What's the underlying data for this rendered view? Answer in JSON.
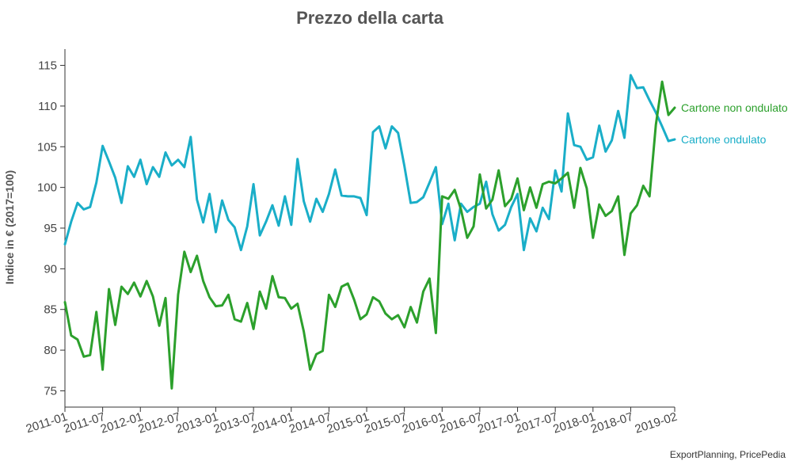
{
  "chart_data": {
    "type": "line",
    "title": "Prezzo della carta",
    "ylabel": "Indice in € (2017=100)",
    "xlabel": "",
    "source": "ExportPlanning, PricePedia",
    "ylim": [
      73,
      117
    ],
    "y_ticks": [
      75,
      80,
      85,
      90,
      95,
      100,
      105,
      110,
      115
    ],
    "x_start": "2011-01",
    "x_end": "2019-02",
    "x_ticks": [
      "2011-01",
      "2011-07",
      "2012-01",
      "2012-07",
      "2013-01",
      "2013-07",
      "2014-01",
      "2014-07",
      "2015-01",
      "2015-07",
      "2016-01",
      "2016-07",
      "2017-01",
      "2017-07",
      "2018-01",
      "2018-07",
      "2019-02"
    ],
    "series": [
      {
        "name": "Cartone ondulato",
        "color": "#1aaec8",
        "x": [
          "2011-01",
          "2011-02",
          "2011-03",
          "2011-04",
          "2011-05",
          "2011-06",
          "2011-07",
          "2011-08",
          "2011-09",
          "2011-10",
          "2011-11",
          "2011-12",
          "2012-01",
          "2012-02",
          "2012-03",
          "2012-04",
          "2012-05",
          "2012-06",
          "2012-07",
          "2012-08",
          "2012-09",
          "2012-10",
          "2012-11",
          "2012-12",
          "2013-01",
          "2013-02",
          "2013-03",
          "2013-04",
          "2013-05",
          "2013-06",
          "2013-07",
          "2013-08",
          "2013-09",
          "2013-10",
          "2013-11",
          "2013-12",
          "2014-01",
          "2014-02",
          "2014-03",
          "2014-04",
          "2014-05",
          "2014-06",
          "2014-07",
          "2014-08",
          "2014-09",
          "2014-10",
          "2014-11",
          "2014-12",
          "2015-01",
          "2015-02",
          "2015-03",
          "2015-04",
          "2015-05",
          "2015-06",
          "2015-07",
          "2015-08",
          "2015-09",
          "2015-10",
          "2015-11",
          "2015-12",
          "2016-01",
          "2016-02",
          "2016-03",
          "2016-04",
          "2016-05",
          "2016-06",
          "2016-07",
          "2016-08",
          "2016-09",
          "2016-10",
          "2016-11",
          "2016-12",
          "2017-01",
          "2017-02",
          "2017-03",
          "2017-04",
          "2017-05",
          "2017-06",
          "2017-07",
          "2017-08",
          "2017-09",
          "2017-10",
          "2017-11",
          "2017-12",
          "2018-01",
          "2018-02",
          "2018-03",
          "2018-04",
          "2018-05",
          "2018-06",
          "2018-07",
          "2018-08",
          "2018-09",
          "2018-10",
          "2018-11",
          "2018-12",
          "2019-01",
          "2019-02"
        ],
        "values": [
          93.0,
          95.8,
          98.1,
          97.3,
          97.6,
          100.6,
          105.1,
          103.2,
          101.2,
          98.1,
          102.6,
          101.3,
          103.4,
          100.4,
          102.5,
          101.3,
          104.3,
          102.7,
          103.4,
          102.5,
          106.2,
          98.5,
          95.7,
          99.2,
          94.5,
          98.4,
          96.0,
          95.1,
          92.3,
          95.2,
          100.4,
          94.1,
          95.8,
          97.8,
          95.3,
          98.9,
          95.4,
          103.5,
          98.3,
          95.8,
          98.6,
          97.0,
          99.2,
          102.2,
          99.0,
          98.9,
          98.9,
          98.7,
          96.6,
          106.8,
          107.5,
          104.8,
          107.5,
          106.7,
          102.6,
          98.1,
          98.2,
          98.8,
          100.6,
          102.5,
          95.5,
          98.0,
          93.5,
          98.0,
          97.0,
          97.6,
          98.0,
          100.7,
          96.7,
          94.7,
          95.4,
          97.6,
          99.2,
          92.3,
          96.2,
          94.6,
          97.5,
          96.1,
          102.1,
          99.5,
          109.1,
          105.2,
          105.0,
          103.4,
          103.7,
          107.6,
          104.4,
          105.8,
          109.4,
          106.1,
          113.8,
          112.2,
          112.3,
          110.7,
          109.2,
          107.5,
          105.7,
          105.9
        ]
      },
      {
        "name": "Cartone non ondulato",
        "color": "#2ca02c",
        "x": [
          "2011-01",
          "2011-02",
          "2011-03",
          "2011-04",
          "2011-05",
          "2011-06",
          "2011-07",
          "2011-08",
          "2011-09",
          "2011-10",
          "2011-11",
          "2011-12",
          "2012-01",
          "2012-02",
          "2012-03",
          "2012-04",
          "2012-05",
          "2012-06",
          "2012-07",
          "2012-08",
          "2012-09",
          "2012-10",
          "2012-11",
          "2012-12",
          "2013-01",
          "2013-02",
          "2013-03",
          "2013-04",
          "2013-05",
          "2013-06",
          "2013-07",
          "2013-08",
          "2013-09",
          "2013-10",
          "2013-11",
          "2013-12",
          "2014-01",
          "2014-02",
          "2014-03",
          "2014-04",
          "2014-05",
          "2014-06",
          "2014-07",
          "2014-08",
          "2014-09",
          "2014-10",
          "2014-11",
          "2014-12",
          "2015-01",
          "2015-02",
          "2015-03",
          "2015-04",
          "2015-05",
          "2015-06",
          "2015-07",
          "2015-08",
          "2015-09",
          "2015-10",
          "2015-11",
          "2015-12",
          "2016-01",
          "2016-02",
          "2016-03",
          "2016-04",
          "2016-05",
          "2016-06",
          "2016-07",
          "2016-08",
          "2016-09",
          "2016-10",
          "2016-11",
          "2016-12",
          "2017-01",
          "2017-02",
          "2017-03",
          "2017-04",
          "2017-05",
          "2017-06",
          "2017-07",
          "2017-08",
          "2017-09",
          "2017-10",
          "2017-11",
          "2017-12",
          "2018-01",
          "2018-02",
          "2018-03",
          "2018-04",
          "2018-05",
          "2018-06",
          "2018-07",
          "2018-08",
          "2018-09",
          "2018-10",
          "2018-11",
          "2018-12",
          "2019-01",
          "2019-02"
        ],
        "values": [
          85.9,
          81.8,
          81.3,
          79.2,
          79.4,
          84.7,
          77.6,
          87.5,
          83.1,
          87.8,
          86.9,
          88.3,
          86.6,
          88.5,
          86.6,
          83.0,
          86.4,
          75.3,
          86.8,
          92.1,
          89.6,
          91.6,
          88.5,
          86.5,
          85.4,
          85.5,
          86.8,
          83.8,
          83.5,
          85.8,
          82.6,
          87.2,
          85.1,
          89.1,
          86.5,
          86.4,
          85.1,
          85.7,
          82.3,
          77.6,
          79.5,
          79.9,
          86.8,
          85.3,
          87.8,
          88.2,
          86.2,
          83.8,
          84.4,
          86.5,
          86.0,
          84.5,
          83.8,
          84.3,
          82.8,
          85.3,
          83.4,
          87.2,
          88.8,
          82.1,
          98.9,
          98.6,
          99.7,
          97.3,
          93.8,
          95.2,
          101.6,
          97.4,
          98.5,
          102.1,
          97.7,
          98.6,
          101.1,
          97.2,
          100.0,
          97.5,
          100.4,
          100.7,
          100.5,
          101.1,
          101.8,
          97.5,
          102.4,
          99.9,
          93.8,
          97.9,
          96.5,
          97.1,
          98.9,
          91.7,
          96.8,
          97.8,
          100.2,
          98.9,
          107.7,
          113.0,
          108.9,
          109.8
        ]
      }
    ]
  }
}
